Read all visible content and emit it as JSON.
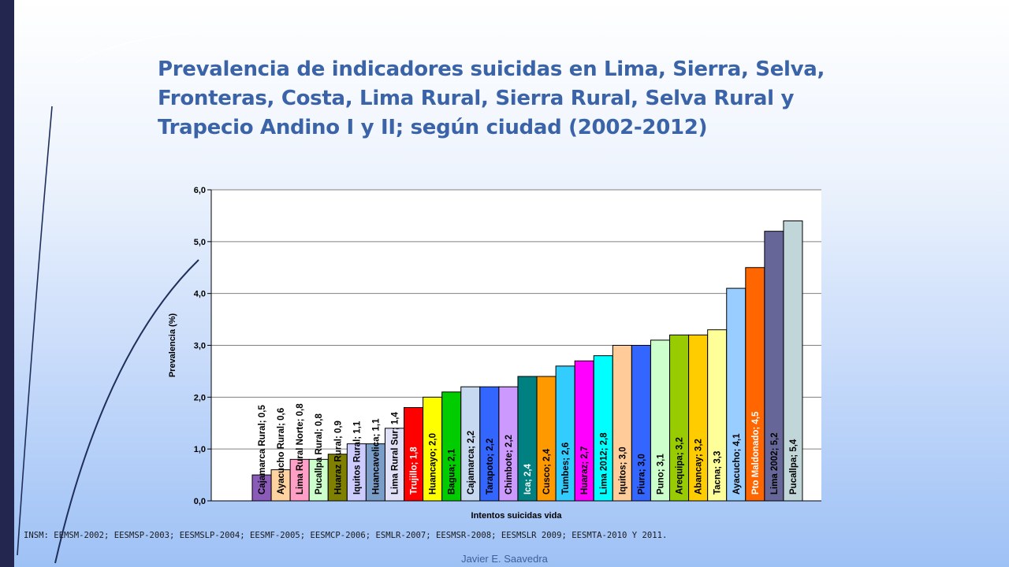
{
  "slide": {
    "title": "Prevalencia de indicadores suicidas en Lima, Sierra, Selva, Fronteras, Costa, Lima Rural, Sierra Rural, Selva Rural y Trapecio Andino I y II; según ciudad (2002-2012)",
    "sources": "INSM: EEMSM-2002; EESMSP-2003; EESMSLP-2004; EESMF-2005; EESMCP-2006; ESMLR-2007; EESMSR-2008; EESMSLR 2009; EESMTA-2010 Y 2011.",
    "author": "Javier E. Saavedra"
  },
  "chart_data": {
    "type": "bar",
    "xlabel": "Intentos suicidas vida",
    "ylabel": "Prevalencia (%)",
    "ylim": [
      0,
      6
    ],
    "yticks": [
      "0,0",
      "1,0",
      "2,0",
      "3,0",
      "4,0",
      "5,0",
      "6,0"
    ],
    "grid": true,
    "categories": [
      "Cajamarca Rural",
      "Ayacucho Rural",
      "Lima Rural Norte",
      "Pucallpa Rural",
      "Huaraz Rural",
      "Iquitos Rural",
      "Huancavelica",
      "Lima Rural Sur",
      "Trujillo",
      "Huancayo",
      "Bagua",
      "Cajamarca",
      "Tarapoto",
      "Chimbote",
      "Ica",
      "Cusco",
      "Tumbes",
      "Huaraz",
      "Lima 2012",
      "Iquitos",
      "Piura",
      "Puno",
      "Arequipa",
      "Abancay",
      "Tacna",
      "Ayacucho",
      "Pto Maldonado",
      "Lima 2002",
      "Pucallpa"
    ],
    "values": [
      0.5,
      0.6,
      0.8,
      0.8,
      0.9,
      1.1,
      1.1,
      1.4,
      1.8,
      2.0,
      2.1,
      2.2,
      2.2,
      2.2,
      2.4,
      2.4,
      2.6,
      2.7,
      2.8,
      3.0,
      3.0,
      3.1,
      3.2,
      3.2,
      3.3,
      4.1,
      4.5,
      5.2,
      5.4
    ],
    "data_labels": [
      "Cajamarca Rural; 0,5",
      "Ayacucho Rural; 0,6",
      "Lima Rural Norte; 0,8",
      "Pucallpa Rural; 0,8",
      "Huaraz Rural; 0,9",
      "Iquitos Rural; 1,1",
      "Huancavelica; 1,1",
      "Lima Rural Sur; 1,4",
      "Trujillo; 1,8",
      "Huancayo; 2,0",
      "Bagua; 2,1",
      "Cajamarca; 2,2",
      "Tarapoto; 2,2",
      "Chimbote; 2,2",
      "Ica; 2,4",
      "Cusco; 2,4",
      "Tumbes; 2,6",
      "Huaraz; 2,7",
      "Lima 2012; 2,8",
      "Iquitos; 3,0",
      "Piura; 3,0",
      "Puno; 3,1",
      "Arequipa; 3,2",
      "Abancay; 3,2",
      "Tacna; 3,3",
      "Ayacucho; 4,1",
      "Pto Maldonado; 4,5",
      "Lima 2002; 5,2",
      "Pucallpa; 5,4"
    ],
    "colors": [
      "#8a5bb8",
      "#ffd3a0",
      "#ff9fc8",
      "#ccffcc",
      "#808000",
      "#ccccff",
      "#7b9ec9",
      "#e0e0f8",
      "#ff0000",
      "#ffff00",
      "#00cc00",
      "#c6d9f1",
      "#3366ff",
      "#cc99ff",
      "#008080",
      "#ff9900",
      "#33ccff",
      "#ff00ff",
      "#00ffff",
      "#ffcc99",
      "#3366ff",
      "#ccffcc",
      "#99cc00",
      "#ffcc00",
      "#ffff99",
      "#99ccff",
      "#ff6600",
      "#666699",
      "#c0d6d9"
    ],
    "label_colors": [
      "#000000",
      "#000000",
      "#000000",
      "#000000",
      "#000000",
      "#000000",
      "#000000",
      "#000000",
      "#ffffff",
      "#000000",
      "#000000",
      "#000000",
      "#000000",
      "#000000",
      "#ffffff",
      "#000000",
      "#000000",
      "#000000",
      "#000000",
      "#000000",
      "#000000",
      "#000000",
      "#000000",
      "#000000",
      "#000000",
      "#000000",
      "#ffffff",
      "#000000",
      "#000000"
    ]
  }
}
